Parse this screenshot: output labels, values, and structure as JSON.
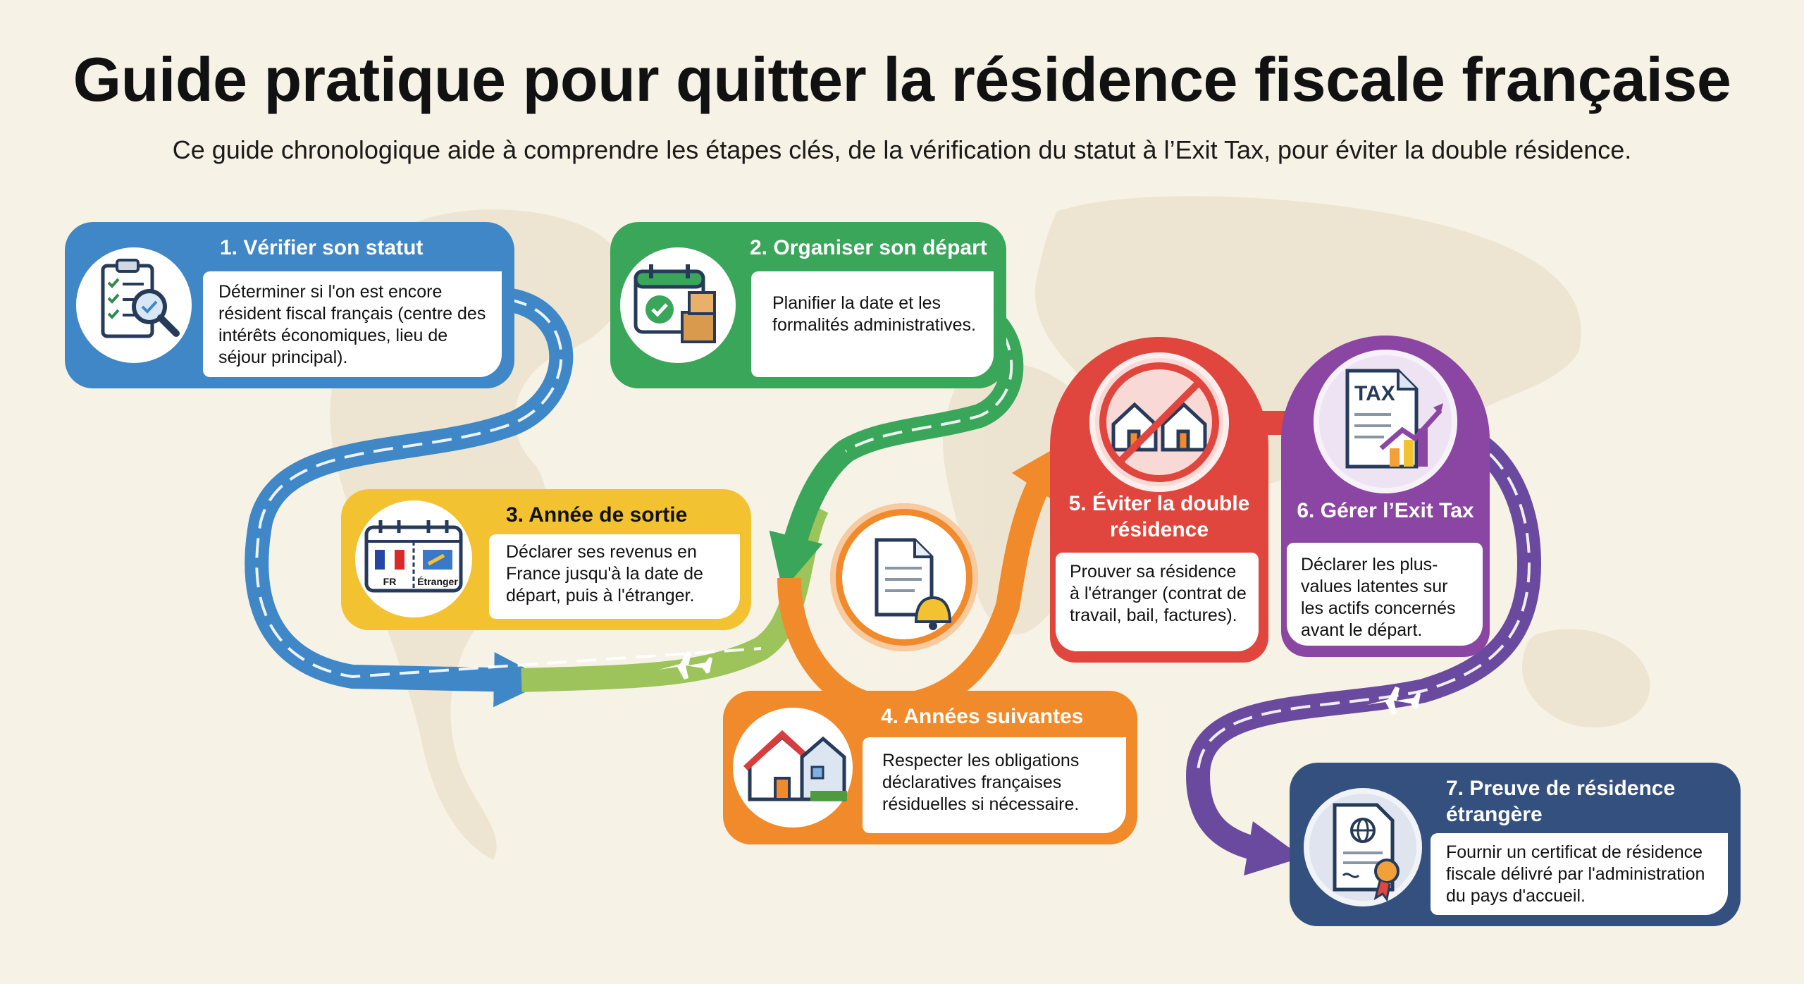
{
  "header": {
    "title": "Guide pratique pour quitter la résidence fiscale française",
    "subtitle": "Ce guide chronologique aide à comprendre les étapes clés, de la vérification du statut à l’Exit Tax, pour éviter la double résidence."
  },
  "steps": [
    {
      "title": "1. Vérifier son statut",
      "text": "Déterminer si l'on est encore résident fiscal français (centre des intérêts économiques, lieu de séjour principal).",
      "color": "#3f87c6",
      "icon": "checklist-magnifier-icon"
    },
    {
      "title": "2. Organiser son départ",
      "text": "Planifier la date et les formalités administratives.",
      "color": "#3aa65a",
      "icon": "calendar-boxes-icon"
    },
    {
      "title": "3. Année de sortie",
      "text": "Déclarer ses revenus en France jusqu'à la date de départ, puis à l'étranger.",
      "color": "#f2c230",
      "icon": "calendar-flags-icon",
      "flag_fr": "FR",
      "flag_abroad": "Étranger"
    },
    {
      "title": "4. Années suivantes",
      "text": "Respecter les obligations déclaratives françaises résiduelles si nécessaire.",
      "color": "#f08a2a",
      "icon": "houses-icon"
    },
    {
      "title": "5. Éviter la double résidence",
      "text": "Prouver sa résidence à l'étranger (contrat de travail, bail, factures).",
      "color": "#e0463d",
      "icon": "no-double-house-icon"
    },
    {
      "title": "6. Gérer l’Exit Tax",
      "text": "Déclarer les plus-values latentes sur les actifs concernés avant le départ.",
      "color": "#8a46a2",
      "icon": "tax-document-chart-icon",
      "tax_label": "TAX"
    },
    {
      "title": "7. Preuve de résidence étrangère",
      "text": "Fournir un certificat de résidence fiscale délivré par l'administration du pays d'accueil.",
      "color": "#34507f",
      "icon": "certificate-globe-icon"
    }
  ],
  "connector_icon": "document-bell-icon"
}
